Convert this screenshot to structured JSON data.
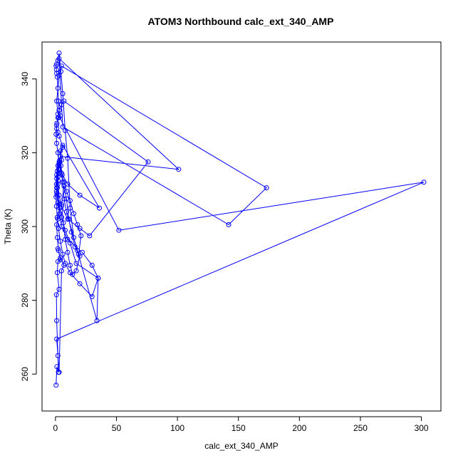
{
  "chart_data": {
    "type": "line",
    "title": "ATOM3 Northbound calc_ext_340_AMP",
    "xlabel": "calc_ext_340_AMP",
    "ylabel": "Theta (K)",
    "xlim": [
      -11,
      316
    ],
    "ylim": [
      250,
      350
    ],
    "xticks": [
      0,
      50,
      100,
      150,
      200,
      250,
      300
    ],
    "yticks": [
      260,
      280,
      300,
      320,
      340
    ],
    "grid": false,
    "legend": "none",
    "marker": "open-circle",
    "series_color": "#0000ff",
    "series": [
      {
        "x": [
          0.5,
          1.2,
          2.5,
          1.0,
          0.8,
          3.0,
          1.5,
          2.0,
          4.0,
          2.5,
          1.5,
          1.0,
          2.0,
          3.5,
          1.2,
          0.8,
          1.5,
          2.2,
          1.0,
          2.5,
          3.5,
          5.0,
          4.0,
          6.0,
          3.0,
          2.0,
          1.0,
          1.2,
          2.8,
          4.0,
          3.0,
          2.5,
          1.5,
          1.0,
          0.8,
          0.5,
          1.0,
          2.0,
          3.0,
          4.5,
          6.0,
          8.0,
          10.0,
          12.0,
          15.0,
          18.0,
          20.0,
          17.0,
          14.0,
          12.0,
          10.0,
          8.0,
          6.5,
          5.0,
          7.0,
          9.0,
          11.0,
          13.0,
          16.0,
          19.0,
          21.0,
          18.0,
          15.0,
          12.0,
          9.0,
          7.0,
          5.5,
          4.5,
          3.5,
          2.5,
          1.5,
          3.0,
          5.0,
          8.0,
          12.0,
          17.0,
          35.0,
          30.0,
          22.0,
          10.0,
          5.0,
          3.5,
          2.0,
          1.2,
          0.8,
          1.5,
          3.0,
          6.0,
          7.0,
          9.0,
          34.0,
          35.0,
          30.0,
          20.0,
          12.0,
          8.0,
          6.0,
          4.0,
          2.5,
          1.5,
          0.8,
          0.5,
          1.0,
          2.0,
          3.0,
          4.0,
          6.0,
          36.0,
          20.0,
          10.0,
          5.0,
          3.0,
          2.0,
          1.0,
          0.5,
          1.0,
          2.0,
          3.0,
          5.0,
          7.0,
          76.0,
          28.0,
          20.0,
          10.0,
          5.0,
          3.0,
          2.0,
          1.0,
          2.0,
          4.0,
          101.0,
          3.0,
          6.0,
          142.0,
          173.0,
          5.0,
          3.0,
          2.0,
          1.0,
          2.0,
          52.0,
          302.0,
          1.0,
          2.0,
          3.0,
          5.0,
          7.0,
          4.0,
          2.0
        ],
        "y": [
          257.0,
          262.0,
          260.5,
          274.5,
          281.5,
          283.0,
          287.5,
          290.5,
          291.0,
          293.5,
          297.0,
          300.5,
          302.0,
          305.0,
          308.5,
          309.5,
          310.5,
          312.5,
          313.0,
          315.5,
          317.5,
          318.0,
          320.5,
          321.5,
          324.5,
          325.5,
          326.5,
          328.0,
          329.5,
          330.0,
          331.5,
          334.0,
          340.5,
          341.5,
          342.5,
          343.5,
          344.0,
          345.0,
          347.0,
          342.0,
          336.0,
          326.0,
          318.5,
          305.0,
          297.0,
          293.5,
          292.0,
          288.0,
          287.0,
          289.5,
          293.0,
          296.5,
          301.0,
          306.0,
          311.0,
          307.5,
          302.0,
          298.5,
          294.5,
          292.5,
          297.5,
          300.5,
          303.5,
          307.0,
          309.5,
          312.0,
          314.0,
          316.5,
          318.0,
          314.5,
          310.5,
          306.0,
          302.5,
          299.0,
          295.5,
          290.0,
          286.0,
          289.5,
          293.0,
          296.5,
          300.0,
          303.5,
          306.5,
          309.0,
          311.5,
          315.0,
          317.0,
          312.0,
          307.5,
          304.0,
          274.5,
          286.0,
          281.0,
          284.5,
          287.5,
          290.0,
          292.5,
          296.0,
          299.5,
          302.5,
          305.5,
          308.0,
          310.5,
          313.5,
          316.5,
          319.0,
          322.0,
          305.0,
          308.5,
          311.5,
          314.5,
          317.5,
          320.0,
          322.5,
          325.0,
          327.5,
          329.5,
          331.5,
          333.0,
          334.0,
          317.5,
          297.5,
          299.5,
          302.0,
          305.5,
          308.5,
          311.5,
          314.0,
          316.5,
          319.0,
          315.5,
          345.5,
          327.0,
          300.5,
          310.5,
          343.5,
          341.0,
          337.5,
          334.0,
          330.5,
          299.0,
          312.0,
          269.5,
          265.0,
          260.5,
          288.0,
          289.5,
          291.5,
          294.0
        ]
      }
    ]
  }
}
